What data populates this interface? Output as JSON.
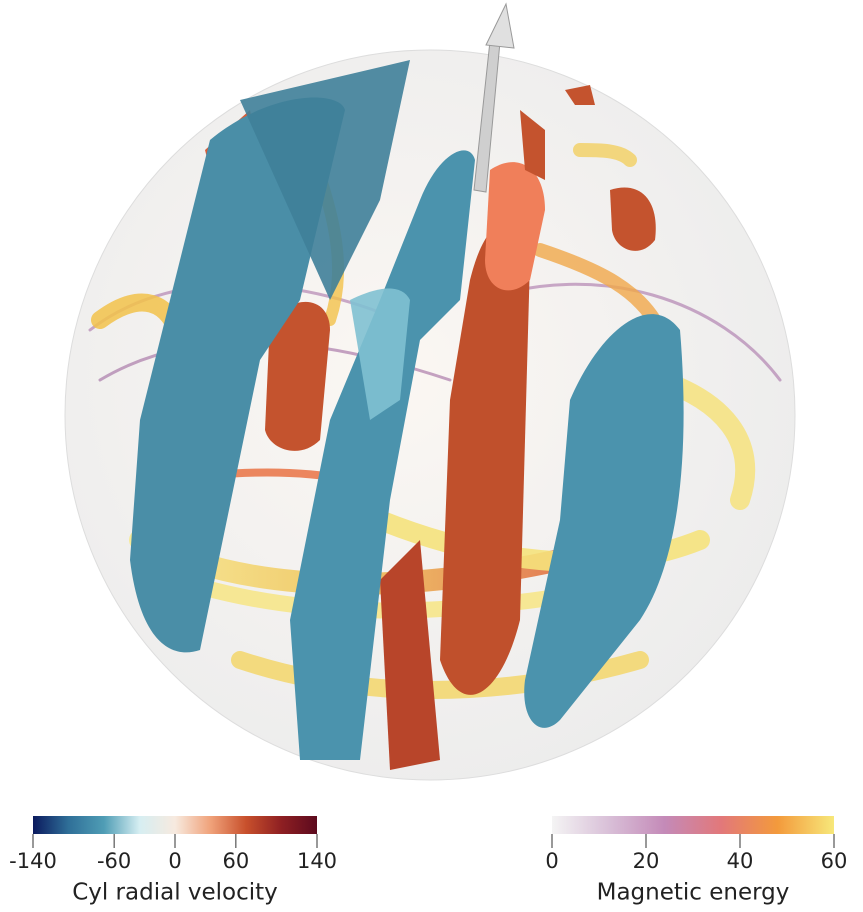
{
  "colorbars": [
    {
      "title": "Cyl radial velocity",
      "lim": [
        -140,
        140
      ],
      "ticks": [
        -140,
        -60,
        0,
        60,
        140
      ],
      "colors": [
        "#0b1a5e",
        "#2f6f98",
        "#4f9db5",
        "#d6eef2",
        "#f7eadf",
        "#f0a27a",
        "#c8502c",
        "#8e1f22",
        "#5c0a1e"
      ]
    },
    {
      "title": "Magnetic energy",
      "lim": [
        0,
        60
      ],
      "ticks": [
        0,
        20,
        40,
        60
      ],
      "colors": [
        "#f4f4f4",
        "#d9c0d8",
        "#c48ab8",
        "#e2787a",
        "#f39a3c",
        "#f7e87a"
      ]
    }
  ]
}
